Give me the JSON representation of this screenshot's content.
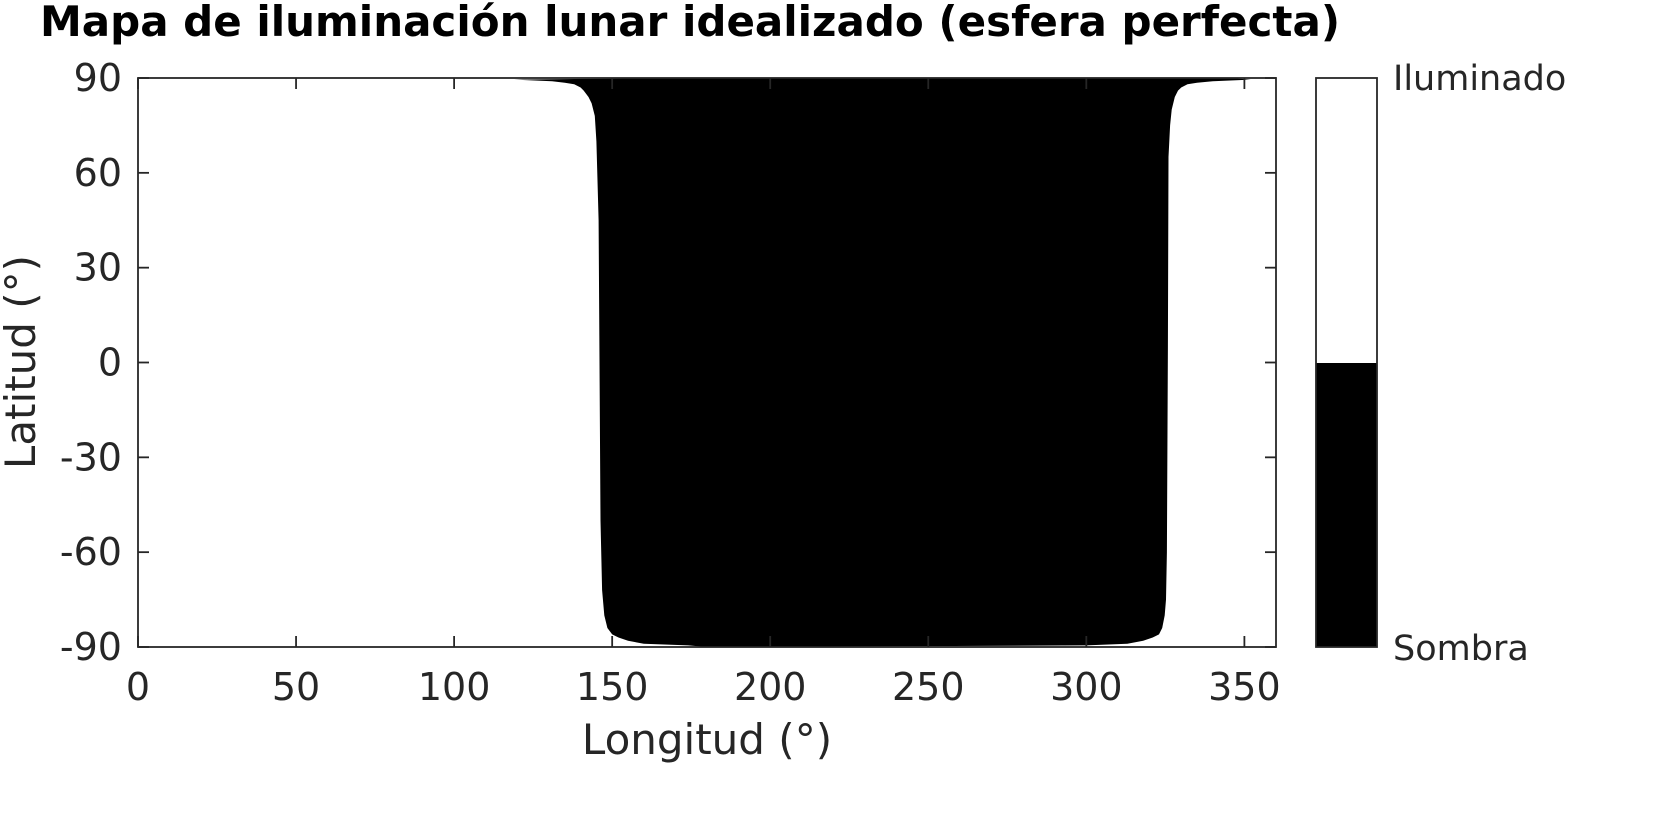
{
  "chart_data": {
    "type": "heatmap",
    "title": "Mapa de iluminación lunar idealizado (esfera perfecta)",
    "xlabel": "Longitud (°)",
    "ylabel": "Latitud (°)",
    "xlim": [
      0,
      360
    ],
    "ylim": [
      -90,
      90
    ],
    "xticks": [
      0,
      50,
      100,
      150,
      200,
      250,
      300,
      350
    ],
    "yticks": [
      90,
      60,
      30,
      0,
      -30,
      -60,
      -90
    ],
    "grid": false,
    "colorbar": {
      "labels": [
        "Iluminado",
        "Sombra"
      ],
      "colors": {
        "Iluminado": "#ffffff",
        "Sombra": "#000000"
      }
    },
    "shadow_boundary": {
      "west": [
        [
          90,
          168
        ],
        [
          89.5,
          119
        ],
        [
          89,
          131
        ],
        [
          88.5,
          135
        ],
        [
          88,
          138
        ],
        [
          87,
          140
        ],
        [
          86,
          141
        ],
        [
          84,
          142.5
        ],
        [
          82,
          143.5
        ],
        [
          78,
          144.5
        ],
        [
          70,
          145
        ],
        [
          45,
          145.7
        ],
        [
          0,
          146
        ],
        [
          -50,
          146.3
        ],
        [
          -72,
          146.8
        ],
        [
          -80,
          147.5
        ],
        [
          -84,
          148.5
        ],
        [
          -86,
          150
        ],
        [
          -87,
          152
        ],
        [
          -88,
          155
        ],
        [
          -89,
          160
        ],
        [
          -89.5,
          174
        ],
        [
          -90,
          180
        ]
      ],
      "east": [
        [
          90,
          346
        ],
        [
          89.5,
          352
        ],
        [
          89,
          340
        ],
        [
          88.5,
          335
        ],
        [
          88,
          332
        ],
        [
          87,
          330
        ],
        [
          86,
          329
        ],
        [
          84,
          328
        ],
        [
          80,
          327
        ],
        [
          75,
          326.5
        ],
        [
          65,
          326
        ],
        [
          5,
          325.8
        ],
        [
          -60,
          325.5
        ],
        [
          -75,
          325.2
        ],
        [
          -80,
          324.8
        ],
        [
          -84,
          324
        ],
        [
          -86,
          323
        ],
        [
          -87,
          321
        ],
        [
          -88,
          318
        ],
        [
          -89,
          313
        ],
        [
          -89.5,
          300
        ],
        [
          -90,
          180
        ]
      ]
    }
  }
}
